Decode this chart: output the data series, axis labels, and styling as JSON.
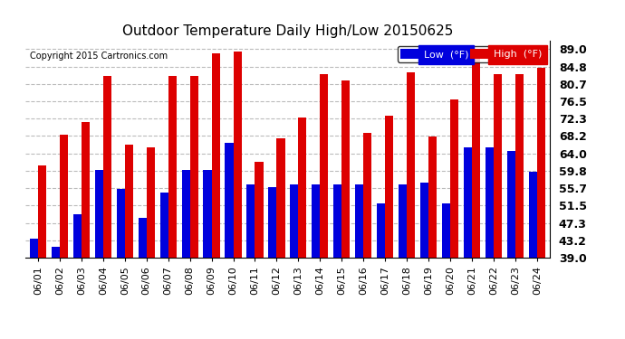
{
  "title": "Outdoor Temperature Daily High/Low 20150625",
  "copyright": "Copyright 2015 Cartronics.com",
  "legend_low": "Low  (°F)",
  "legend_high": "High  (°F)",
  "low_color": "#0000dd",
  "high_color": "#dd0000",
  "background_color": "#ffffff",
  "grid_color": "#bbbbbb",
  "dates": [
    "06/01",
    "06/02",
    "06/03",
    "06/04",
    "06/05",
    "06/06",
    "06/07",
    "06/08",
    "06/09",
    "06/10",
    "06/11",
    "06/12",
    "06/13",
    "06/14",
    "06/15",
    "06/16",
    "06/17",
    "06/18",
    "06/19",
    "06/20",
    "06/21",
    "06/22",
    "06/23",
    "06/24"
  ],
  "highs": [
    61.0,
    68.5,
    71.5,
    82.5,
    66.0,
    65.5,
    82.5,
    82.5,
    88.0,
    88.5,
    62.0,
    67.5,
    72.5,
    83.0,
    81.5,
    69.0,
    73.0,
    83.5,
    68.0,
    77.0,
    89.0,
    83.0,
    83.0,
    84.5
  ],
  "lows": [
    43.5,
    41.5,
    49.5,
    60.0,
    55.5,
    48.5,
    54.5,
    60.0,
    60.0,
    66.5,
    56.5,
    56.0,
    56.5,
    56.5,
    56.5,
    56.5,
    52.0,
    56.5,
    57.0,
    52.0,
    65.5,
    65.5,
    64.5,
    59.5
  ],
  "ylim": [
    39.0,
    91.0
  ],
  "yticks": [
    39.0,
    43.2,
    47.3,
    51.5,
    55.7,
    59.8,
    64.0,
    68.2,
    72.3,
    76.5,
    80.7,
    84.8,
    89.0
  ],
  "ybase": 39.0,
  "bar_width": 0.38
}
